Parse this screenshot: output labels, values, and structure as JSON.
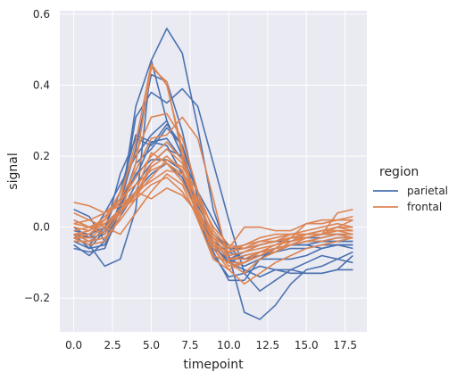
{
  "chart_data": {
    "type": "line",
    "xlabel": "timepoint",
    "ylabel": "signal",
    "xlim": [
      -0.9,
      18.9
    ],
    "ylim": [
      -0.295,
      0.61
    ],
    "xticks": [
      0.0,
      2.5,
      5.0,
      7.5,
      10.0,
      12.5,
      15.0,
      17.5
    ],
    "xtick_labels": [
      "0.0",
      "2.5",
      "5.0",
      "7.5",
      "10.0",
      "12.5",
      "15.0",
      "17.5"
    ],
    "yticks": [
      -0.2,
      0.0,
      0.2,
      0.4,
      0.6
    ],
    "ytick_labels": [
      "−0.2",
      "0.0",
      "0.2",
      "0.4",
      "0.6"
    ],
    "grid": true,
    "legend": {
      "title": "region",
      "placement": "right",
      "entries": [
        {
          "label": "parietal",
          "color": "#4c72b0"
        },
        {
          "label": "frontal",
          "color": "#dd8452"
        }
      ]
    },
    "x": [
      0,
      1,
      2,
      3,
      4,
      5,
      6,
      7,
      8,
      9,
      10,
      11,
      12,
      13,
      14,
      15,
      16,
      17,
      18
    ],
    "series": [
      {
        "group": "parietal",
        "values": [
          -0.03,
          -0.05,
          -0.11,
          -0.09,
          0.05,
          0.47,
          0.56,
          0.49,
          0.28,
          0.05,
          -0.08,
          -0.24,
          -0.26,
          -0.22,
          -0.16,
          -0.12,
          -0.11,
          -0.09,
          -0.1
        ]
      },
      {
        "group": "parietal",
        "values": [
          -0.06,
          -0.07,
          -0.06,
          0.05,
          0.31,
          0.38,
          0.35,
          0.39,
          0.34,
          0.18,
          0.02,
          -0.13,
          -0.18,
          -0.15,
          -0.12,
          -0.1,
          -0.08,
          -0.09,
          -0.07
        ]
      },
      {
        "group": "parietal",
        "values": [
          0.05,
          0.03,
          -0.04,
          0.07,
          0.22,
          0.43,
          0.41,
          0.27,
          0.08,
          -0.05,
          -0.1,
          -0.12,
          -0.14,
          -0.12,
          -0.12,
          -0.13,
          -0.13,
          -0.12,
          -0.08
        ]
      },
      {
        "group": "parietal",
        "values": [
          -0.05,
          -0.08,
          -0.04,
          0.05,
          0.34,
          0.47,
          0.3,
          0.2,
          0.03,
          -0.08,
          -0.14,
          -0.13,
          -0.11,
          -0.12,
          -0.13,
          -0.13,
          -0.13,
          -0.12,
          -0.12
        ]
      },
      {
        "group": "parietal",
        "values": [
          -0.04,
          -0.06,
          -0.01,
          0.15,
          0.25,
          0.23,
          0.29,
          0.23,
          0.1,
          -0.07,
          -0.15,
          -0.15,
          -0.09,
          -0.09,
          -0.09,
          -0.08,
          -0.06,
          -0.05,
          -0.05
        ]
      },
      {
        "group": "parietal",
        "values": [
          0.0,
          -0.03,
          0.04,
          0.12,
          0.2,
          0.26,
          0.3,
          0.2,
          0.05,
          -0.04,
          -0.09,
          -0.11,
          -0.09,
          -0.06,
          -0.05,
          -0.05,
          -0.06,
          -0.05,
          -0.05
        ]
      },
      {
        "group": "parietal",
        "values": [
          -0.03,
          -0.05,
          0.0,
          0.1,
          0.26,
          0.24,
          0.25,
          0.19,
          0.05,
          -0.05,
          -0.1,
          -0.1,
          -0.08,
          -0.07,
          -0.05,
          -0.04,
          -0.04,
          -0.04,
          -0.04
        ]
      },
      {
        "group": "parietal",
        "values": [
          -0.01,
          -0.02,
          0.0,
          0.05,
          0.18,
          0.22,
          0.28,
          0.23,
          0.05,
          -0.08,
          -0.1,
          -0.08,
          -0.07,
          -0.06,
          -0.05,
          -0.04,
          -0.04,
          -0.03,
          -0.03
        ]
      },
      {
        "group": "parietal",
        "values": [
          0.02,
          0.0,
          0.02,
          0.08,
          0.14,
          0.24,
          0.23,
          0.15,
          0.03,
          -0.06,
          -0.09,
          -0.07,
          -0.05,
          -0.04,
          -0.03,
          -0.03,
          -0.02,
          -0.02,
          -0.02
        ]
      },
      {
        "group": "parietal",
        "values": [
          -0.02,
          -0.03,
          -0.02,
          0.06,
          0.15,
          0.19,
          0.19,
          0.16,
          0.06,
          -0.02,
          -0.06,
          -0.06,
          -0.05,
          -0.04,
          -0.04,
          -0.03,
          -0.03,
          -0.02,
          -0.03
        ]
      },
      {
        "group": "parietal",
        "values": [
          -0.04,
          -0.04,
          -0.01,
          0.04,
          0.12,
          0.18,
          0.22,
          0.2,
          0.1,
          0.02,
          -0.06,
          -0.09,
          -0.07,
          -0.06,
          -0.05,
          -0.05,
          -0.04,
          -0.04,
          -0.04
        ]
      },
      {
        "group": "parietal",
        "values": [
          -0.02,
          -0.06,
          -0.05,
          0.03,
          0.1,
          0.15,
          0.18,
          0.14,
          0.04,
          -0.04,
          -0.07,
          -0.09,
          -0.08,
          -0.07,
          -0.06,
          -0.06,
          -0.05,
          -0.05,
          -0.06
        ]
      },
      {
        "group": "frontal",
        "values": [
          0.07,
          0.06,
          0.04,
          0.08,
          0.24,
          0.46,
          0.4,
          0.22,
          0.05,
          -0.08,
          -0.1,
          -0.1,
          -0.08,
          -0.06,
          -0.03,
          -0.03,
          -0.02,
          0.04,
          0.05
        ]
      },
      {
        "group": "frontal",
        "values": [
          -0.03,
          -0.05,
          -0.04,
          0.03,
          0.18,
          0.45,
          0.41,
          0.2,
          0.02,
          -0.09,
          -0.12,
          -0.1,
          -0.07,
          -0.06,
          -0.05,
          -0.03,
          -0.02,
          0.0,
          0.02
        ]
      },
      {
        "group": "frontal",
        "values": [
          -0.03,
          -0.02,
          0.02,
          0.1,
          0.21,
          0.31,
          0.32,
          0.25,
          0.1,
          -0.05,
          -0.11,
          -0.1,
          -0.07,
          -0.05,
          -0.03,
          0.01,
          0.02,
          0.02,
          0.03
        ]
      },
      {
        "group": "frontal",
        "values": [
          0.01,
          0.0,
          0.02,
          0.08,
          0.16,
          0.25,
          0.26,
          0.31,
          0.25,
          0.08,
          -0.1,
          -0.13,
          -0.09,
          -0.07,
          -0.04,
          -0.02,
          -0.01,
          0.0,
          0.0
        ]
      },
      {
        "group": "frontal",
        "values": [
          -0.02,
          -0.01,
          0.02,
          0.08,
          0.12,
          0.16,
          0.18,
          0.13,
          0.04,
          -0.06,
          -0.12,
          -0.16,
          -0.13,
          -0.1,
          -0.08,
          -0.06,
          -0.05,
          -0.04,
          -0.03
        ]
      },
      {
        "group": "frontal",
        "values": [
          0.02,
          0.0,
          -0.02,
          0.04,
          0.1,
          0.21,
          0.18,
          0.15,
          0.05,
          -0.04,
          -0.09,
          -0.09,
          -0.07,
          -0.07,
          -0.05,
          -0.04,
          -0.03,
          -0.02,
          -0.02
        ]
      },
      {
        "group": "frontal",
        "values": [
          -0.02,
          -0.04,
          -0.01,
          0.05,
          0.08,
          0.12,
          0.14,
          0.1,
          0.03,
          -0.05,
          -0.08,
          -0.07,
          -0.06,
          -0.05,
          -0.04,
          -0.03,
          -0.02,
          -0.01,
          -0.01
        ]
      },
      {
        "group": "frontal",
        "values": [
          -0.01,
          0.0,
          0.01,
          0.04,
          0.09,
          0.18,
          0.22,
          0.18,
          0.07,
          -0.03,
          -0.08,
          -0.07,
          -0.05,
          -0.04,
          -0.03,
          -0.02,
          -0.02,
          -0.02,
          -0.03
        ]
      },
      {
        "group": "frontal",
        "values": [
          0.04,
          0.02,
          0.0,
          -0.02,
          0.04,
          0.1,
          0.15,
          0.12,
          0.02,
          -0.05,
          -0.07,
          -0.05,
          -0.03,
          -0.02,
          -0.02,
          -0.01,
          0.0,
          0.01,
          0.0
        ]
      },
      {
        "group": "frontal",
        "values": [
          -0.04,
          -0.04,
          -0.03,
          0.02,
          0.08,
          0.17,
          0.2,
          0.16,
          0.05,
          -0.04,
          -0.09,
          -0.08,
          -0.07,
          -0.06,
          -0.05,
          -0.04,
          -0.04,
          -0.03,
          -0.03
        ]
      },
      {
        "group": "frontal",
        "values": [
          -0.02,
          -0.02,
          0.01,
          0.05,
          0.1,
          0.13,
          0.16,
          0.15,
          0.08,
          0.0,
          -0.05,
          -0.06,
          -0.04,
          -0.03,
          -0.02,
          -0.02,
          -0.01,
          -0.01,
          -0.01
        ]
      },
      {
        "group": "frontal",
        "values": [
          0.0,
          -0.01,
          0.03,
          0.07,
          0.14,
          0.2,
          0.24,
          0.19,
          0.07,
          -0.02,
          -0.07,
          -0.06,
          -0.05,
          -0.04,
          -0.03,
          -0.02,
          -0.02,
          -0.01,
          -0.02
        ]
      },
      {
        "group": "frontal",
        "values": [
          -0.03,
          -0.03,
          0.0,
          0.04,
          0.09,
          0.14,
          0.19,
          0.17,
          0.1,
          -0.01,
          -0.06,
          -0.05,
          -0.04,
          -0.04,
          -0.02,
          -0.02,
          -0.01,
          0.0,
          -0.01
        ]
      },
      {
        "group": "frontal",
        "values": [
          0.01,
          0.02,
          0.04,
          0.06,
          0.1,
          0.08,
          0.11,
          0.09,
          0.04,
          -0.03,
          -0.06,
          0.0,
          0.0,
          -0.01,
          -0.01,
          0.01,
          0.01,
          0.02,
          0.02
        ]
      }
    ]
  }
}
